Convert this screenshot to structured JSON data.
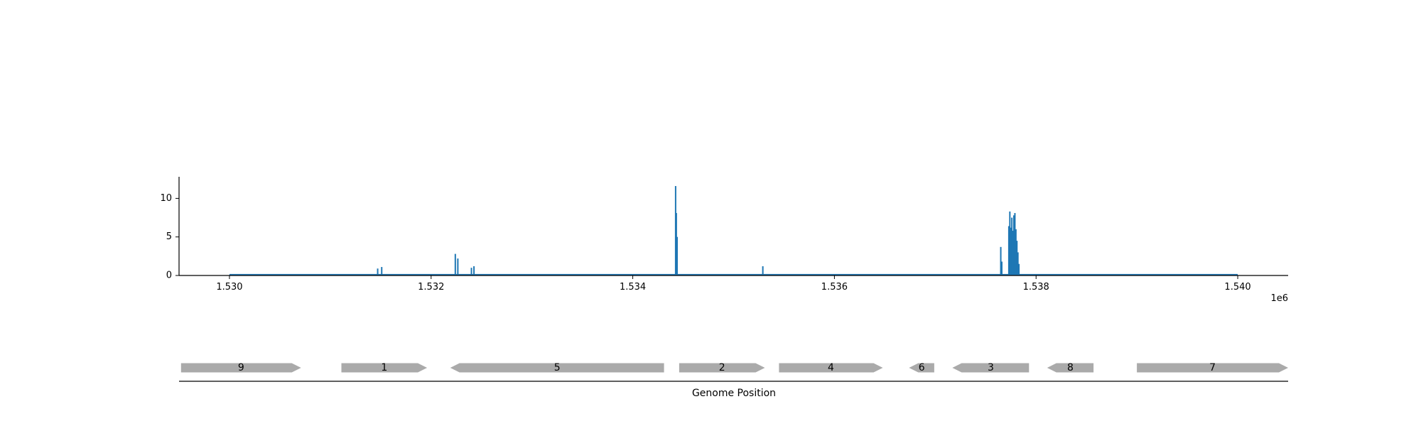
{
  "chart_data": [
    {
      "type": "bar",
      "title": "",
      "xlabel": "",
      "ylabel": "",
      "xlim": [
        1529500,
        1540500
      ],
      "ylim": [
        0,
        12.8
      ],
      "x_ticks": [
        1530000,
        1532000,
        1534000,
        1536000,
        1538000,
        1540000
      ],
      "x_tick_labels": [
        "1.530",
        "1.532",
        "1.534",
        "1.536",
        "1.538",
        "1.540"
      ],
      "x_offset_label": "1e6",
      "y_ticks": [
        0,
        5,
        10
      ],
      "y_tick_labels": [
        "0",
        "5",
        "10"
      ],
      "baseline_range": [
        1530000,
        1540000
      ],
      "color": "#1f77b4",
      "grid": false,
      "series": [
        {
          "x": [
            1531470,
            1531510,
            1532240,
            1532265,
            1532400,
            1532425,
            1534425,
            1534432,
            1534440,
            1535290,
            1537650,
            1537660,
            1537730,
            1537740,
            1537750,
            1537760,
            1537770,
            1537780,
            1537790,
            1537800,
            1537810,
            1537820,
            1537830
          ],
          "values": [
            0.9,
            1.1,
            2.8,
            2.2,
            1.0,
            1.2,
            11.6,
            8.1,
            5.0,
            1.2,
            3.7,
            1.8,
            6.4,
            8.3,
            6.2,
            7.5,
            5.8,
            7.8,
            8.1,
            6.0,
            4.5,
            3.0,
            1.5
          ]
        }
      ]
    },
    {
      "type": "gene-track",
      "xlabel": "Genome Position",
      "color": "#aaaaaa",
      "genes": [
        {
          "label": "9",
          "start": 1529520,
          "end": 1530710,
          "strand": "+"
        },
        {
          "label": "1",
          "start": 1531110,
          "end": 1531960,
          "strand": "+"
        },
        {
          "label": "5",
          "start": 1532190,
          "end": 1534310,
          "strand": "-"
        },
        {
          "label": "2",
          "start": 1534460,
          "end": 1535310,
          "strand": "+"
        },
        {
          "label": "4",
          "start": 1535450,
          "end": 1536480,
          "strand": "+"
        },
        {
          "label": "6",
          "start": 1536740,
          "end": 1536990,
          "strand": "-"
        },
        {
          "label": "3",
          "start": 1537170,
          "end": 1537930,
          "strand": "-"
        },
        {
          "label": "8",
          "start": 1538110,
          "end": 1538570,
          "strand": "-"
        },
        {
          "label": "7",
          "start": 1539000,
          "end": 1540500,
          "strand": "+"
        }
      ]
    }
  ]
}
